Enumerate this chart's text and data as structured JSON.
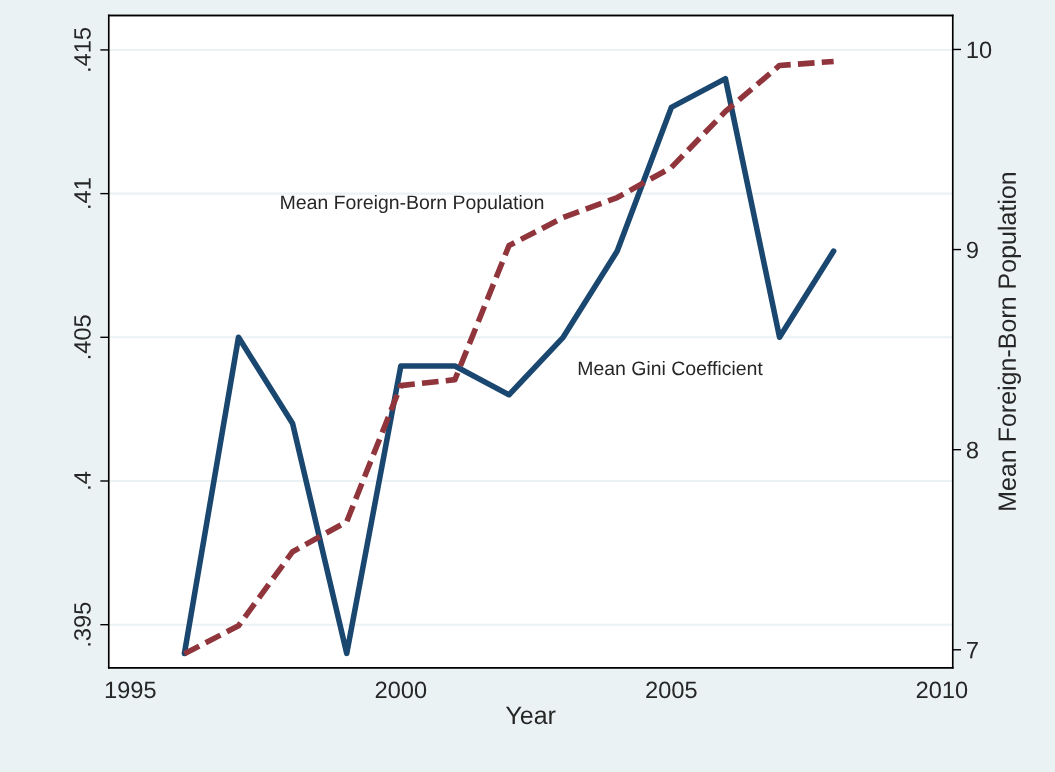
{
  "chart_data": {
    "type": "line",
    "xlabel": "Year",
    "y2label": "Mean Foreign-Born Population",
    "x": [
      1996,
      1997,
      1998,
      1999,
      2000,
      2001,
      2002,
      2003,
      2004,
      2005,
      2006,
      2007,
      2008
    ],
    "series": [
      {
        "color": "#1a476f",
        "line_style": "solid",
        "values": [
          0.394,
          0.405,
          0.402,
          0.394,
          0.404,
          0.404,
          0.403,
          0.405,
          0.408,
          0.413,
          0.414,
          0.405,
          0.408
        ]
      },
      {
        "color": "#90353b",
        "line_style": "dashed",
        "axis": "y2",
        "values": [
          6.98,
          7.12,
          7.49,
          7.64,
          8.32,
          8.35,
          9.02,
          9.16,
          9.26,
          9.41,
          9.69,
          9.92,
          9.94
        ]
      }
    ],
    "xlim": [
      1994.6,
      2010.2
    ],
    "xticks": [
      1995,
      2000,
      2005,
      2010
    ],
    "ylim": [
      0.3935,
      0.4162
    ],
    "yticks": [
      {
        "value": 0.395,
        "label": ".395"
      },
      {
        "value": 0.4,
        "label": ".4"
      },
      {
        "value": 0.405,
        "label": ".405"
      },
      {
        "value": 0.41,
        "label": ".41"
      },
      {
        "value": 0.415,
        "label": ".415"
      }
    ],
    "y2lim": [
      6.91,
      10.17
    ],
    "y2ticks": [
      7,
      8,
      9,
      10
    ],
    "grid": "y",
    "marker": "none",
    "annotations": [
      "Mean Foreign-Born Population",
      "Mean Gini Coefficient"
    ]
  }
}
